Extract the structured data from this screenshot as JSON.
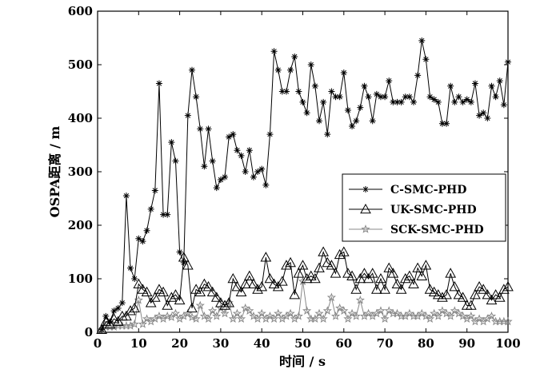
{
  "chart_data": {
    "type": "line",
    "title": "",
    "xlabel": "时间 / s",
    "ylabel": "OSPA距离 / m",
    "xlim": [
      0,
      100
    ],
    "ylim": [
      0,
      600
    ],
    "xticks": [
      "0",
      "10",
      "20",
      "30",
      "40",
      "50",
      "60",
      "70",
      "80",
      "90",
      "100"
    ],
    "yticks": [
      "0",
      "100",
      "200",
      "300",
      "400",
      "500",
      "600"
    ],
    "grid": false,
    "legend_position": "center-right",
    "series": [
      {
        "name": "C-SMC-PHD",
        "color": "#000000",
        "marker": "asterisk",
        "x": [
          1,
          2,
          3,
          4,
          5,
          6,
          7,
          8,
          9,
          10,
          11,
          12,
          13,
          14,
          15,
          16,
          17,
          18,
          19,
          20,
          21,
          22,
          23,
          24,
          25,
          26,
          27,
          28,
          29,
          30,
          31,
          32,
          33,
          34,
          35,
          36,
          37,
          38,
          39,
          40,
          41,
          42,
          43,
          44,
          45,
          46,
          47,
          48,
          49,
          50,
          51,
          52,
          53,
          54,
          55,
          56,
          57,
          58,
          59,
          60,
          61,
          62,
          63,
          64,
          65,
          66,
          67,
          68,
          69,
          70,
          71,
          72,
          73,
          74,
          75,
          76,
          77,
          78,
          79,
          80,
          81,
          82,
          83,
          84,
          85,
          86,
          87,
          88,
          89,
          90,
          91,
          92,
          93,
          94,
          95,
          96,
          97,
          98,
          99,
          100
        ],
        "values": [
          5,
          30,
          20,
          40,
          45,
          55,
          255,
          120,
          100,
          175,
          170,
          190,
          230,
          265,
          465,
          220,
          220,
          355,
          320,
          150,
          130,
          405,
          490,
          440,
          380,
          310,
          380,
          320,
          270,
          285,
          290,
          365,
          370,
          340,
          330,
          300,
          340,
          290,
          300,
          305,
          275,
          370,
          525,
          490,
          450,
          450,
          490,
          515,
          450,
          430,
          410,
          500,
          460,
          395,
          430,
          370,
          450,
          440,
          440,
          485,
          415,
          385,
          395,
          420,
          460,
          440,
          395,
          445,
          440,
          440,
          470,
          430,
          430,
          430,
          440,
          440,
          430,
          480,
          545,
          510,
          440,
          435,
          430,
          390,
          390,
          460,
          430,
          440,
          430,
          435,
          430,
          465,
          405,
          410,
          400,
          460,
          440,
          470,
          425,
          505
        ]
      },
      {
        "name": "UK-SMC-PHD",
        "color": "#000000",
        "marker": "triangle",
        "x": [
          1,
          2,
          3,
          4,
          5,
          6,
          7,
          8,
          9,
          10,
          11,
          12,
          13,
          14,
          15,
          16,
          17,
          18,
          19,
          20,
          21,
          22,
          23,
          24,
          25,
          26,
          27,
          28,
          29,
          30,
          31,
          32,
          33,
          34,
          35,
          36,
          37,
          38,
          39,
          40,
          41,
          42,
          43,
          44,
          45,
          46,
          47,
          48,
          49,
          50,
          51,
          52,
          53,
          54,
          55,
          56,
          57,
          58,
          59,
          60,
          61,
          62,
          63,
          64,
          65,
          66,
          67,
          68,
          69,
          70,
          71,
          72,
          73,
          74,
          75,
          76,
          77,
          78,
          79,
          80,
          81,
          82,
          83,
          84,
          85,
          86,
          87,
          88,
          89,
          90,
          91,
          92,
          93,
          94,
          95,
          96,
          97,
          98,
          99,
          100
        ],
        "values": [
          5,
          20,
          15,
          25,
          20,
          30,
          30,
          40,
          45,
          90,
          80,
          75,
          55,
          65,
          80,
          75,
          50,
          65,
          70,
          60,
          140,
          125,
          45,
          80,
          75,
          90,
          85,
          75,
          65,
          55,
          50,
          55,
          100,
          85,
          75,
          90,
          105,
          90,
          80,
          85,
          140,
          100,
          90,
          85,
          95,
          125,
          130,
          70,
          110,
          125,
          100,
          105,
          100,
          120,
          150,
          130,
          125,
          110,
          145,
          150,
          110,
          105,
          80,
          100,
          110,
          100,
          110,
          80,
          100,
          80,
          120,
          110,
          90,
          80,
          100,
          105,
          90,
          120,
          105,
          125,
          80,
          75,
          70,
          65,
          70,
          110,
          85,
          70,
          65,
          50,
          50,
          70,
          85,
          80,
          70,
          60,
          70,
          65,
          80,
          85
        ]
      },
      {
        "name": "SCK-SMC-PHD",
        "color": "#888888",
        "marker": "star",
        "x": [
          1,
          2,
          3,
          4,
          5,
          6,
          7,
          8,
          9,
          10,
          11,
          12,
          13,
          14,
          15,
          16,
          17,
          18,
          19,
          20,
          21,
          22,
          23,
          24,
          25,
          26,
          27,
          28,
          29,
          30,
          31,
          32,
          33,
          34,
          35,
          36,
          37,
          38,
          39,
          40,
          41,
          42,
          43,
          44,
          45,
          46,
          47,
          48,
          49,
          50,
          51,
          52,
          53,
          54,
          55,
          56,
          57,
          58,
          59,
          60,
          61,
          62,
          63,
          64,
          65,
          66,
          67,
          68,
          69,
          70,
          71,
          72,
          73,
          74,
          75,
          76,
          77,
          78,
          79,
          80,
          81,
          82,
          83,
          84,
          85,
          86,
          87,
          88,
          89,
          90,
          91,
          92,
          93,
          94,
          95,
          96,
          97,
          98,
          99,
          100
        ],
        "values": [
          5,
          10,
          10,
          10,
          12,
          12,
          12,
          12,
          15,
          60,
          15,
          25,
          20,
          25,
          30,
          25,
          30,
          28,
          35,
          25,
          30,
          35,
          28,
          25,
          50,
          30,
          25,
          40,
          30,
          45,
          35,
          55,
          25,
          35,
          25,
          45,
          40,
          30,
          25,
          35,
          25,
          30,
          25,
          35,
          25,
          30,
          35,
          25,
          30,
          95,
          40,
          25,
          25,
          35,
          25,
          40,
          65,
          30,
          45,
          40,
          25,
          35,
          30,
          60,
          30,
          35,
          30,
          35,
          40,
          25,
          40,
          35,
          35,
          30,
          30,
          35,
          30,
          30,
          35,
          30,
          25,
          35,
          30,
          40,
          35,
          30,
          40,
          35,
          30,
          25,
          30,
          20,
          25,
          20,
          25,
          30,
          20,
          20,
          20,
          20
        ]
      }
    ]
  }
}
